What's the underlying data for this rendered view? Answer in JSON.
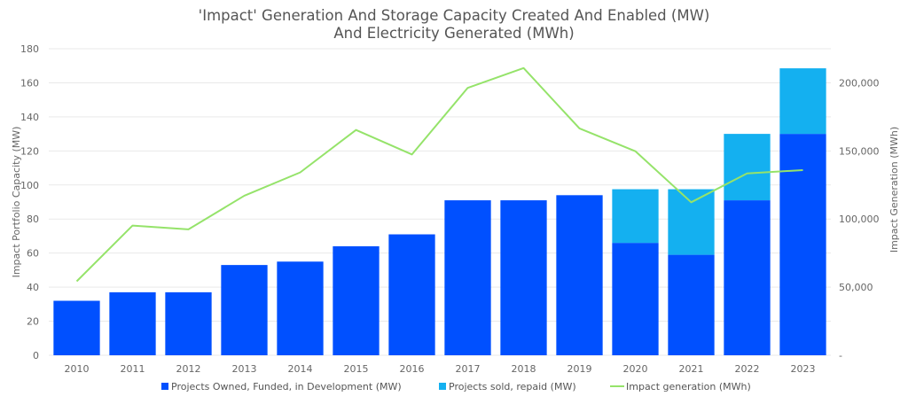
{
  "chart_data": {
    "type": "bar",
    "title_lines": [
      "'Impact' Generation And Storage Capacity Created And Enabled (MW)",
      "And Electricity Generated (MWh)"
    ],
    "categories": [
      "2010",
      "2011",
      "2012",
      "2013",
      "2014",
      "2015",
      "2016",
      "2017",
      "2018",
      "2019",
      "2020",
      "2021",
      "2022",
      "2023"
    ],
    "stacked": true,
    "series": [
      {
        "name": "Projects Owned, Funded, in Development (MW)",
        "type": "bar",
        "axis": "left",
        "color": "#0050FF",
        "values": [
          32,
          37,
          37,
          53,
          55,
          64,
          71,
          91,
          91,
          94,
          66,
          59,
          91,
          130
        ]
      },
      {
        "name": "Projects sold, repaid (MW)",
        "type": "bar",
        "axis": "left",
        "color": "#14B0F0",
        "values": [
          0,
          0,
          0,
          0,
          0,
          0,
          0,
          0,
          0,
          0,
          31.5,
          38.5,
          39,
          38.5
        ]
      },
      {
        "name": "Impact generation (MWh)",
        "type": "line",
        "axis": "right",
        "color": "#95E36A",
        "values": [
          54300,
          95200,
          92400,
          117100,
          134200,
          165400,
          147400,
          196300,
          210800,
          166500,
          149800,
          112300,
          133500,
          135900
        ]
      }
    ],
    "ylabel": "Impact Portfolio  Capacity (MW)",
    "y2label": "Impact Generation (MWh)",
    "ylim": [
      0,
      180
    ],
    "yticks": [
      "0",
      "20",
      "40",
      "60",
      "80",
      "100",
      "120",
      "140",
      "160",
      "180"
    ],
    "y2lim": [
      0,
      225000
    ],
    "y2ticks": [
      {
        "value": 0,
        "label": "-"
      },
      {
        "value": 50000,
        "label": "50,000"
      },
      {
        "value": 100000,
        "label": "100,000"
      },
      {
        "value": 150000,
        "label": "150,000"
      },
      {
        "value": 200000,
        "label": "200,000"
      }
    ],
    "grid": true,
    "legend_position": "bottom"
  }
}
